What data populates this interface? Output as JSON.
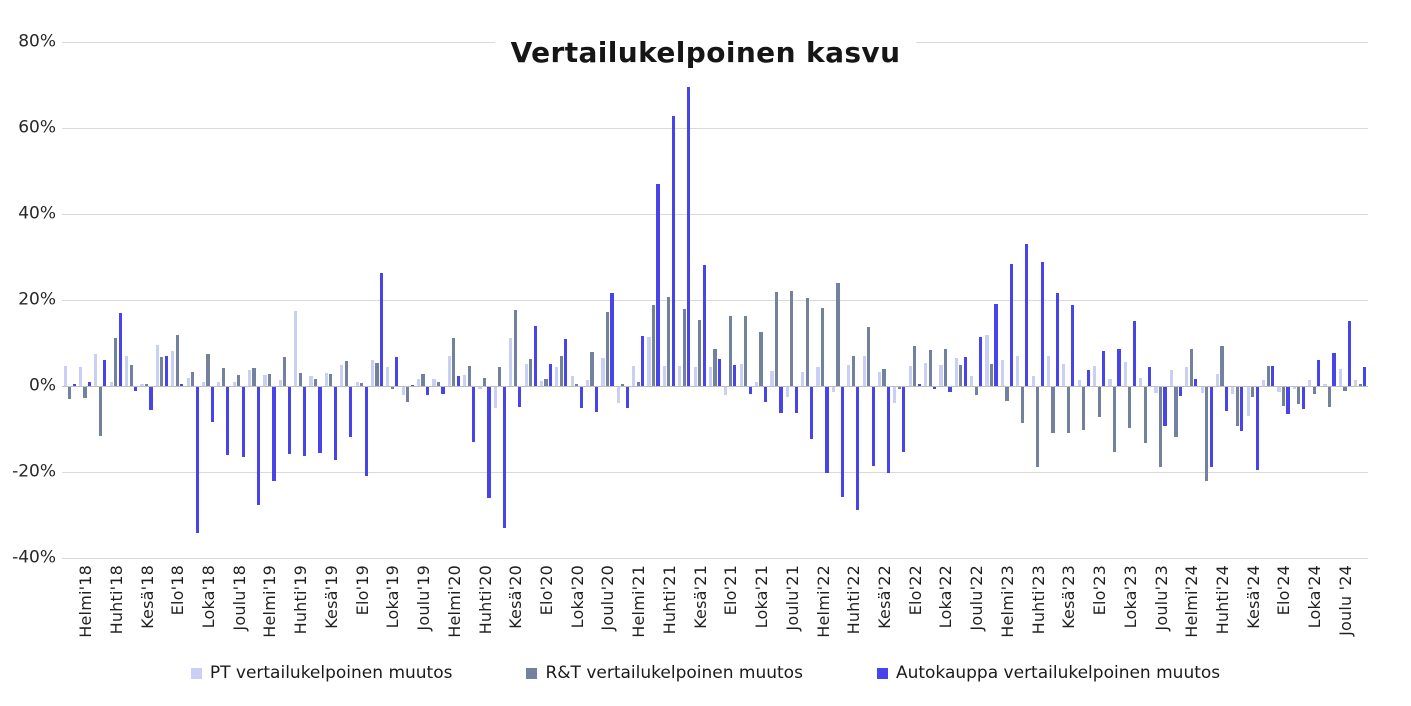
{
  "chart_data": {
    "type": "bar",
    "title": "Vertailukelpoinen kasvu",
    "xlabel": "",
    "ylabel": "",
    "ylim": [
      -40,
      80
    ],
    "ytick_step": 20,
    "y_tick_labels": [
      "80%",
      "60%",
      "40%",
      "20%",
      "0%",
      "-20%",
      "-40%"
    ],
    "grid": true,
    "legend_position": "bottom",
    "categories": [
      "",
      "Helmi'18",
      "",
      "Huhti'18",
      "",
      "Kesä'18",
      "",
      "Elo'18",
      "",
      "Loka'18",
      "",
      "Joulu'18",
      "",
      "Helmi'19",
      "",
      "Huhti'19",
      "",
      "Kesä'19",
      "",
      "Elo'19",
      "",
      "Loka'19",
      "",
      "Joulu'19",
      "",
      "Helmi'20",
      "",
      "Huhti'20",
      "",
      "Kesä'20",
      "",
      "Elo'20",
      "",
      "Loka'20",
      "",
      "Joulu'20",
      "",
      "Helmi'21",
      "",
      "Huhti'21",
      "",
      "Kesä'21",
      "",
      "Elo'21",
      "",
      "Loka'21",
      "",
      "Joulu'21",
      "",
      "Helmi'22",
      "",
      "Huhti'22",
      "",
      "Kesä'22",
      "",
      "Elo'22",
      "",
      "Loka'22",
      "",
      "Joulu'22",
      "",
      "Helmi'23",
      "",
      "Huhti'23",
      "",
      "Kesä'23",
      "",
      "Elo'23",
      "",
      "Loka'23",
      "",
      "Joulu'23",
      "",
      "Helmi'24",
      "",
      "Huhti'24",
      "",
      "Kesä'24",
      "",
      "Elo'24",
      "",
      "Loka'24",
      "",
      "Joulu '24",
      ""
    ],
    "series": [
      {
        "name": "PT vertailukelpoinen muutos",
        "color": "#c9d0f4",
        "values": [
          4.7,
          4.5,
          7.4,
          1.0,
          7.1,
          0.5,
          9.5,
          8.1,
          1.9,
          1.0,
          1.0,
          1.0,
          3.7,
          2.7,
          1.5,
          17.6,
          2.5,
          3.1,
          5.0,
          1.0,
          6.2,
          4.5,
          -1.7,
          1.6,
          1.6,
          7.0,
          2.7,
          -0.5,
          -4.7,
          11.2,
          5.3,
          1.2,
          4.5,
          2.3,
          1.4,
          6.6,
          -3.7,
          4.8,
          11.5,
          4.7,
          4.8,
          4.5,
          4.5,
          -1.9,
          5.3,
          1.0,
          3.5,
          -2.2,
          3.3,
          4.5,
          -1.2,
          5.0,
          7.1,
          3.3,
          -3.7,
          4.8,
          5.4,
          5.0,
          6.6,
          2.3,
          12.0,
          6.2,
          7.0,
          2.5,
          7.1,
          5.3,
          1.4,
          4.8,
          1.6,
          5.6,
          1.9,
          -1.4,
          3.7,
          4.5,
          -1.4,
          2.9,
          -1.5,
          -6.6,
          1.5,
          -1.0,
          -0.5,
          1.5,
          0.5,
          4.0,
          1.4
        ]
      },
      {
        "name": "R&T vertailukelpoinen muutos",
        "color": "#72819e",
        "values": [
          -2.7,
          -2.5,
          -11.2,
          11.2,
          4.9,
          0.5,
          6.8,
          12.0,
          3.3,
          7.6,
          4.3,
          2.7,
          4.3,
          2.9,
          6.7,
          3.0,
          1.6,
          2.9,
          5.8,
          0.8,
          5.4,
          -0.5,
          -3.5,
          2.8,
          1.0,
          11.2,
          4.7,
          1.9,
          4.5,
          17.7,
          6.4,
          1.6,
          7.1,
          0.5,
          7.9,
          17.2,
          0.5,
          1.0,
          18.8,
          20.8,
          18.0,
          15.3,
          8.7,
          16.4,
          16.3,
          12.6,
          21.9,
          22.1,
          20.5,
          18.2,
          23.9,
          7.0,
          13.8,
          4.0,
          -0.5,
          9.3,
          8.4,
          8.7,
          5.0,
          -1.7,
          5.3,
          -3.1,
          -8.4,
          -18.4,
          -10.5,
          -10.7,
          -9.9,
          -6.8,
          -15.1,
          -9.5,
          -13.0,
          -18.4,
          -11.5,
          8.7,
          -21.7,
          9.3,
          -9.1,
          -2.2,
          4.8,
          -4.3,
          -3.9,
          -1.5,
          -4.5,
          -0.9,
          0.5
        ]
      },
      {
        "name": "Autokauppa vertailukelpoinen muutos",
        "color": "#4744ea",
        "values": [
          0.5,
          1.0,
          6.0,
          17.1,
          -0.8,
          -5.3,
          7.0,
          0.5,
          -33.9,
          -8.1,
          -15.7,
          -16.3,
          -27.3,
          -21.7,
          -15.5,
          -15.9,
          -15.3,
          -16.9,
          -11.6,
          -20.5,
          26.3,
          6.8,
          0.0,
          -1.7,
          -1.6,
          2.5,
          -12.6,
          -25.8,
          -32.8,
          -4.5,
          14.1,
          5.2,
          11.1,
          -4.7,
          -5.7,
          21.7,
          -4.7,
          11.8,
          46.9,
          62.9,
          69.6,
          28.1,
          6.4,
          5.0,
          -1.6,
          -3.3,
          -6.0,
          -6.0,
          -12.0,
          -20.0,
          -25.5,
          -28.5,
          -18.2,
          -20.0,
          -15.1,
          0.5,
          -0.5,
          -1.0,
          6.8,
          11.5,
          19.2,
          28.5,
          33.0,
          28.8,
          21.7,
          19.0,
          3.9,
          8.1,
          8.7,
          15.1,
          4.5,
          -9.1,
          -2.0,
          1.7,
          -18.6,
          -5.4,
          -10.1,
          -19.2,
          4.7,
          -6.2,
          -5.0,
          6.2,
          7.8,
          15.1,
          4.5
        ]
      }
    ]
  }
}
